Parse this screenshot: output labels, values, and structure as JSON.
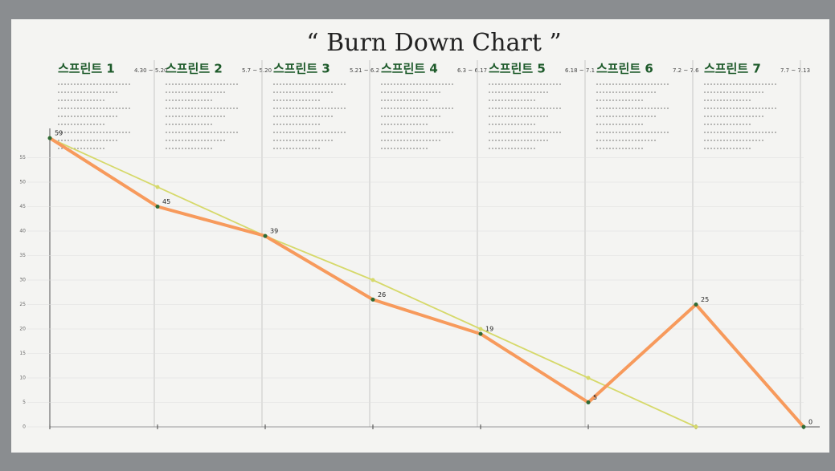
{
  "chart_data": {
    "type": "line",
    "title": "“ Burn Down Chart ”",
    "sprints": [
      {
        "name": "스프린트 1",
        "dates": "4.30 ~ 5.20"
      },
      {
        "name": "스프린트 2",
        "dates": "5.7 ~ 5.20"
      },
      {
        "name": "스프린트 3",
        "dates": "5.21 ~ 6.2"
      },
      {
        "name": "스프린트 4",
        "dates": "6.3 ~ 6.17"
      },
      {
        "name": "스프린트 5",
        "dates": "6.18 ~ 7.1"
      },
      {
        "name": "스프린트 6",
        "dates": "7.2 ~ 7.6"
      },
      {
        "name": "스프린트 7",
        "dates": "7.7 ~ 7.13"
      }
    ],
    "categories": [
      null,
      null,
      null,
      null,
      null,
      null,
      null,
      null
    ],
    "series": [
      {
        "color": "#f79a5c",
        "values": [
          59,
          45,
          39,
          26,
          19,
          5,
          25,
          0
        ]
      },
      {
        "color": "#d6d96a",
        "values": [
          59,
          49,
          39,
          30,
          20,
          10,
          0,
          null
        ]
      }
    ],
    "ylim": [
      0,
      60
    ],
    "yticks": [
      0,
      5,
      10,
      15,
      20,
      25,
      30,
      35,
      40,
      45,
      50,
      55
    ],
    "grid": true
  }
}
